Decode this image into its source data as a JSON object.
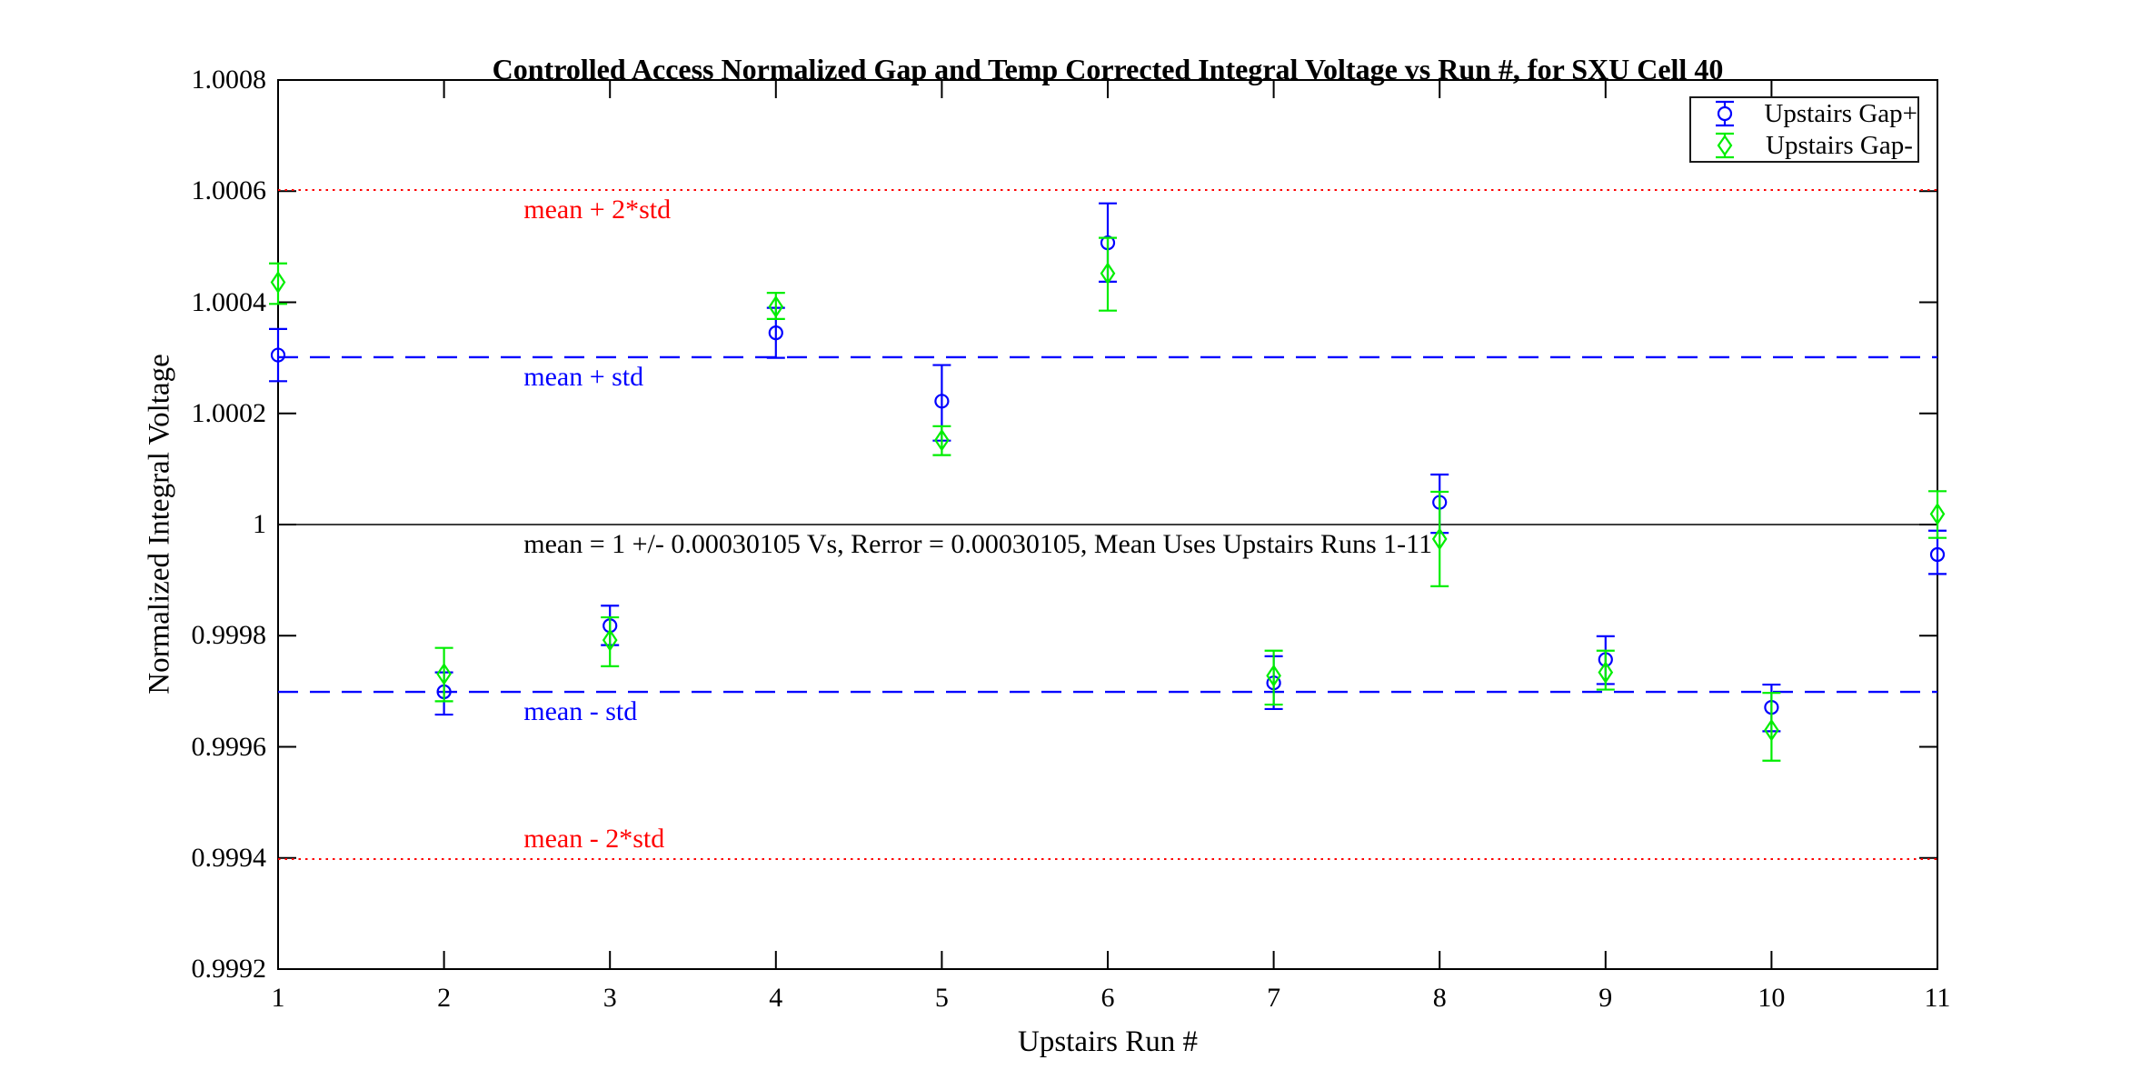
{
  "chart_data": {
    "type": "scatter",
    "subtype": "errorbar",
    "title": "Controlled Access Normalized Gap and Temp Corrected Integral Voltage vs Run #, for SXU Cell 40",
    "xlabel": "Upstairs Run #",
    "ylabel": "Normalized Integral Voltage",
    "xlim": [
      1,
      11
    ],
    "ylim": [
      0.9992,
      1.0008
    ],
    "grid": false,
    "axis_color": "#000000",
    "xticks": [
      1,
      2,
      3,
      4,
      5,
      6,
      7,
      8,
      9,
      10,
      11
    ],
    "xtick_labels": [
      "1",
      "2",
      "3",
      "4",
      "5",
      "6",
      "7",
      "8",
      "9",
      "10",
      "11"
    ],
    "yticks": [
      0.9992,
      0.9994,
      0.9996,
      0.9998,
      1,
      1.0002,
      1.0004,
      1.0006,
      1.0008
    ],
    "ytick_labels": [
      "0.9992",
      "0.9994",
      "0.9996",
      "0.9998",
      "1",
      "1.0002",
      "1.0004",
      "1.0006",
      "1.0008"
    ],
    "legend": {
      "position": "top-right",
      "entries": [
        {
          "name": "gap-plus",
          "label": "Upstairs Gap+",
          "color": "#0000ff",
          "marker": "circle"
        },
        {
          "name": "gap-minus",
          "label": "Upstairs Gap-",
          "color": "#00ee00",
          "marker": "diamond"
        }
      ]
    },
    "reference_lines": [
      {
        "name": "mean-plus-2std",
        "y": 1.0006021,
        "color": "#ff0000",
        "style": "dotted",
        "label": "mean + 2*std",
        "label_side": "below"
      },
      {
        "name": "mean-plus-std",
        "y": 1.00030105,
        "color": "#0000ff",
        "style": "dashed",
        "label": "mean + std",
        "label_side": "below"
      },
      {
        "name": "mean",
        "y": 1.0,
        "color": "#000000",
        "style": "solid",
        "label": "mean = 1 +/- 0.00030105 Vs, Rerror = 0.00030105, Mean Uses Upstairs Runs 1-11",
        "label_side": "below"
      },
      {
        "name": "mean-minus-std",
        "y": 0.99969895,
        "color": "#0000ff",
        "style": "dashed",
        "label": "mean - std",
        "label_side": "below"
      },
      {
        "name": "mean-minus-2std",
        "y": 0.9993979,
        "color": "#ff0000",
        "style": "dotted",
        "label": "mean - 2*std",
        "label_side": "above"
      }
    ],
    "series": [
      {
        "name": "gap-plus",
        "label": "Upstairs Gap+",
        "color": "#0000ff",
        "marker": "circle",
        "x": [
          1,
          2,
          3,
          4,
          5,
          6,
          7,
          8,
          9,
          10,
          11
        ],
        "y": [
          1.000305,
          0.999699,
          0.999818,
          1.000345,
          1.000222,
          1.000507,
          0.999715,
          1.00004,
          0.999757,
          0.999671,
          0.999946
        ],
        "y_upper": [
          1.000352,
          0.999734,
          0.999854,
          1.00039,
          1.000287,
          1.000578,
          0.999763,
          1.00009,
          0.999799,
          0.999712,
          0.999989
        ],
        "y_lower": [
          1.000258,
          0.999658,
          0.999783,
          1.0003,
          1.000151,
          1.000437,
          0.999668,
          0.999985,
          0.999713,
          0.999628,
          0.999911
        ]
      },
      {
        "name": "gap-minus",
        "label": "Upstairs Gap-",
        "color": "#00ee00",
        "marker": "diamond",
        "x": [
          1,
          2,
          3,
          4,
          5,
          6,
          7,
          8,
          9,
          10,
          11
        ],
        "y": [
          1.000436,
          0.999731,
          0.999792,
          1.000392,
          1.000152,
          1.000452,
          0.999728,
          0.999974,
          0.999734,
          0.99963,
          1.000019
        ],
        "y_upper": [
          1.00047,
          0.999778,
          0.999833,
          1.000417,
          1.000177,
          1.000516,
          0.999773,
          1.000059,
          0.999773,
          0.999697,
          1.00006
        ],
        "y_lower": [
          1.000397,
          0.999682,
          0.999745,
          1.00037,
          1.000125,
          1.000385,
          0.999676,
          0.999889,
          0.999703,
          0.999575,
          0.999976
        ]
      }
    ]
  }
}
